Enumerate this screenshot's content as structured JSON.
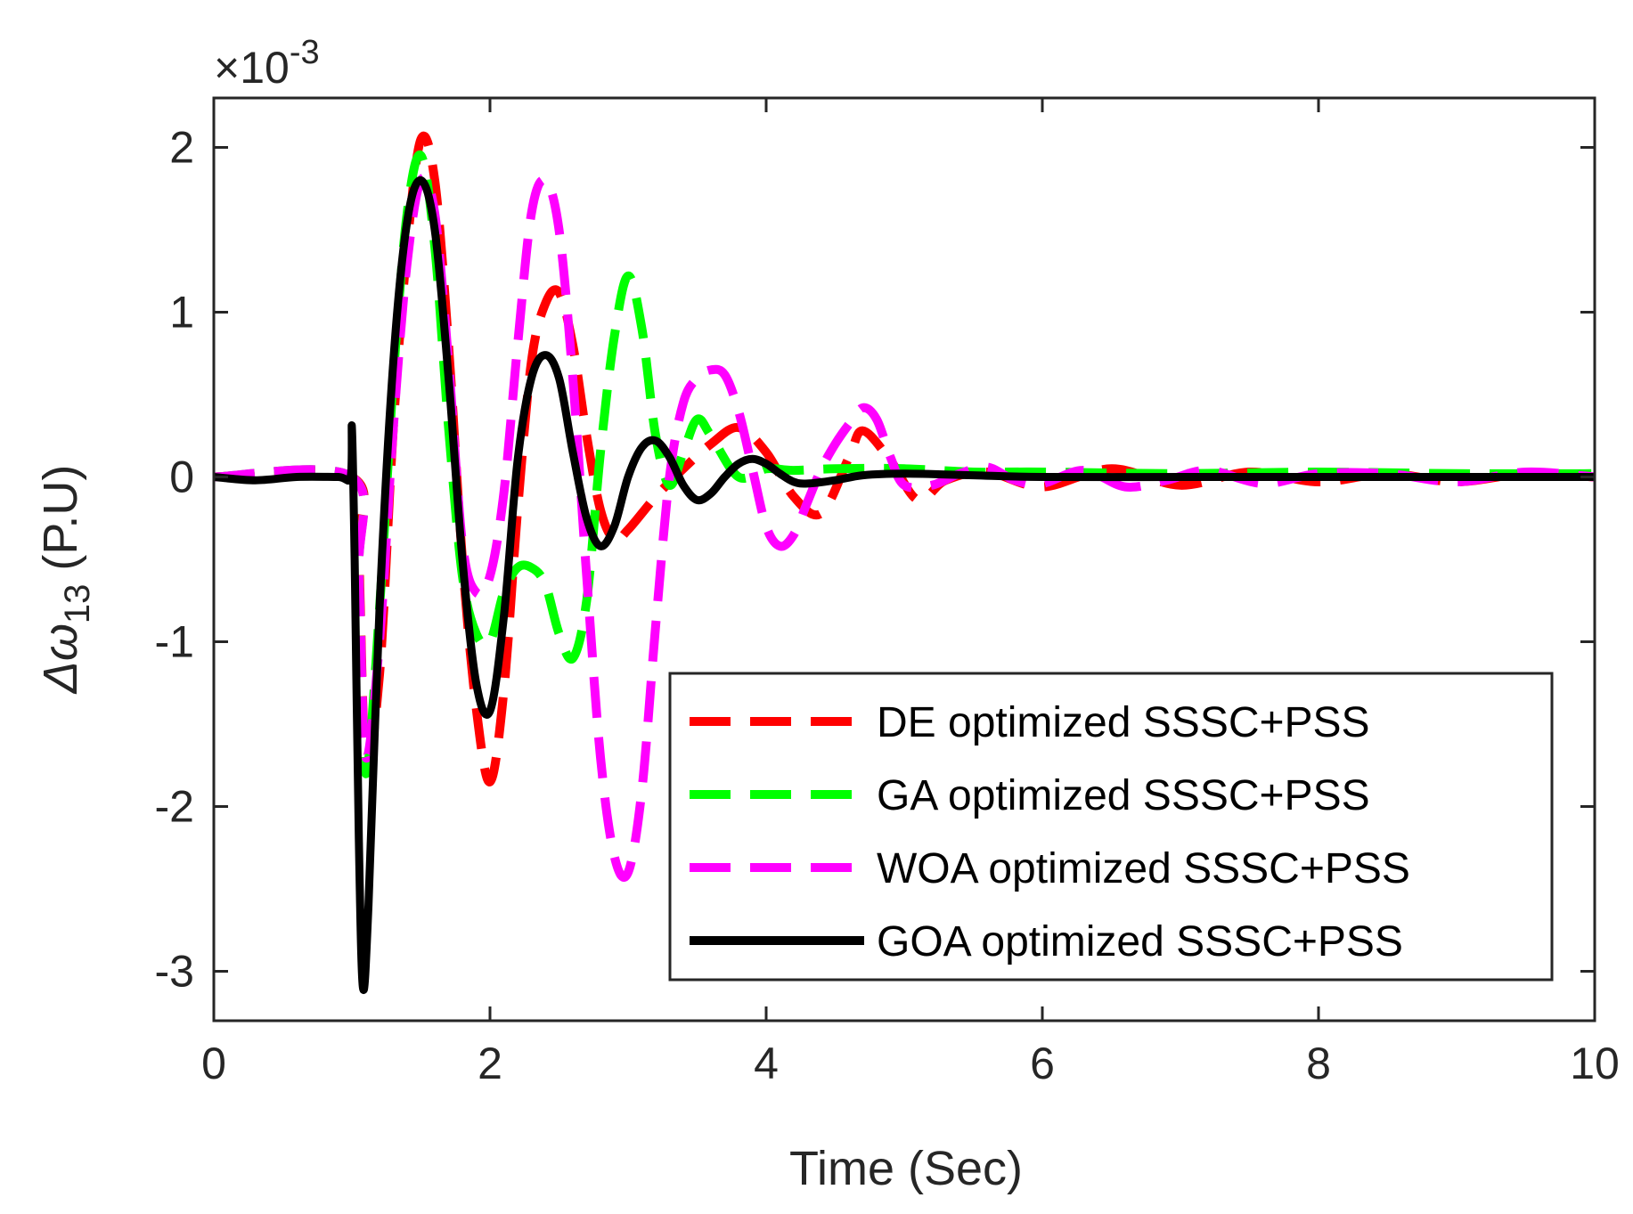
{
  "chart_data": {
    "type": "line",
    "xlabel": "Time (Sec)",
    "ylabel_main": "Δω",
    "ylabel_sub": "13",
    "ylabel_unit": " (P.U)",
    "y_exponent_prefix": "×10",
    "y_exponent_power": "-3",
    "xlim": [
      0,
      10
    ],
    "ylim": [
      -3.3,
      2.3
    ],
    "xticks": [
      0,
      2,
      4,
      6,
      8,
      10
    ],
    "xtick_labels": [
      "0",
      "2",
      "4",
      "6",
      "8",
      "10"
    ],
    "yticks": [
      -3,
      -2,
      -1,
      0,
      1,
      2
    ],
    "ytick_labels": [
      "-3",
      "-2",
      "-1",
      "0",
      "1",
      "2"
    ],
    "grid": false,
    "legend_position": "bottom-right",
    "series": [
      {
        "name": "DE optimized SSSC+PSS",
        "color": "#ff0000",
        "style": "dashed",
        "x": [
          0,
          1,
          1.05,
          1.1,
          1.2,
          1.3,
          1.4,
          1.5,
          1.6,
          1.7,
          1.8,
          1.9,
          2.0,
          2.1,
          2.2,
          2.3,
          2.4,
          2.5,
          2.6,
          2.7,
          2.8,
          2.9,
          3.0,
          3.2,
          3.4,
          3.6,
          3.8,
          4.0,
          4.2,
          4.4,
          4.6,
          4.7,
          4.9,
          5.1,
          5.3,
          5.6,
          6.0,
          6.5,
          7.0,
          7.5,
          8.0,
          8.5,
          9.0,
          9.5,
          10
        ],
        "y": [
          0,
          0,
          -0.5,
          -1.7,
          -1.2,
          0.3,
          1.4,
          2.05,
          1.8,
          0.8,
          -0.5,
          -1.4,
          -1.85,
          -1.3,
          -0.2,
          0.7,
          1.05,
          1.12,
          0.8,
          0.25,
          -0.2,
          -0.38,
          -0.32,
          -0.12,
          0.05,
          0.2,
          0.3,
          0.15,
          -0.12,
          -0.22,
          0.12,
          0.28,
          0.1,
          -0.14,
          -0.02,
          0.03,
          -0.06,
          0.05,
          -0.05,
          0.03,
          -0.03,
          0.02,
          -0.03,
          0.02,
          0
        ]
      },
      {
        "name": "GA optimized SSSC+PSS",
        "color": "#00ff00",
        "style": "dashed",
        "x": [
          0,
          1,
          1.05,
          1.1,
          1.2,
          1.3,
          1.4,
          1.5,
          1.6,
          1.7,
          1.8,
          1.9,
          2.0,
          2.1,
          2.2,
          2.3,
          2.4,
          2.5,
          2.6,
          2.7,
          2.8,
          2.9,
          3.0,
          3.1,
          3.2,
          3.3,
          3.4,
          3.5,
          3.6,
          3.8,
          4.0,
          4.2,
          4.5,
          5.0,
          5.5,
          6.0,
          7.0,
          8.0,
          9.0,
          10
        ],
        "y": [
          0,
          0,
          -0.6,
          -1.8,
          -0.8,
          0.6,
          1.6,
          1.95,
          1.4,
          0.3,
          -0.6,
          -0.95,
          -1.0,
          -0.7,
          -0.55,
          -0.55,
          -0.65,
          -0.95,
          -1.1,
          -0.75,
          0.15,
          0.85,
          1.22,
          0.9,
          0.25,
          -0.05,
          0.15,
          0.35,
          0.25,
          0.0,
          0.05,
          0.04,
          0.05,
          0.05,
          0.03,
          0.03,
          0.02,
          0.03,
          0.02,
          0.02
        ]
      },
      {
        "name": "WOA optimized SSSC+PSS",
        "color": "#ff00ff",
        "style": "dashed",
        "x": [
          0,
          1,
          1.05,
          1.1,
          1.2,
          1.3,
          1.4,
          1.5,
          1.6,
          1.7,
          1.8,
          1.9,
          2.0,
          2.1,
          2.2,
          2.3,
          2.4,
          2.5,
          2.6,
          2.7,
          2.8,
          2.9,
          3.0,
          3.1,
          3.2,
          3.3,
          3.4,
          3.5,
          3.6,
          3.7,
          3.8,
          3.9,
          4.0,
          4.1,
          4.2,
          4.3,
          4.4,
          4.5,
          4.6,
          4.7,
          4.8,
          4.9,
          5.0,
          5.2,
          5.4,
          5.6,
          5.8,
          6.0,
          6.3,
          6.6,
          6.9,
          7.2,
          7.6,
          8.0,
          8.5,
          9.0,
          9.5,
          10
        ],
        "y": [
          0,
          0,
          -0.6,
          -1.7,
          -1.0,
          0.3,
          1.3,
          1.8,
          1.6,
          0.7,
          -0.4,
          -0.7,
          -0.6,
          -0.1,
          0.8,
          1.6,
          1.8,
          1.5,
          0.6,
          -0.6,
          -1.7,
          -2.3,
          -2.4,
          -1.9,
          -0.9,
          0.0,
          0.45,
          0.6,
          0.65,
          0.62,
          0.4,
          0.05,
          -0.3,
          -0.42,
          -0.35,
          -0.15,
          0.05,
          0.2,
          0.32,
          0.42,
          0.35,
          0.12,
          -0.05,
          -0.05,
          0.02,
          0.06,
          -0.02,
          -0.04,
          0.04,
          -0.06,
          -0.02,
          0.04,
          -0.04,
          0.02,
          0.02,
          -0.03,
          0.03,
          0
        ]
      },
      {
        "name": "GOA optimized SSSC+PSS",
        "color": "#000000",
        "style": "solid",
        "x": [
          0,
          0.3,
          0.6,
          0.9,
          0.99,
          1.0,
          1.02,
          1.05,
          1.08,
          1.12,
          1.2,
          1.3,
          1.4,
          1.5,
          1.6,
          1.7,
          1.8,
          1.9,
          2.0,
          2.1,
          2.2,
          2.3,
          2.4,
          2.5,
          2.6,
          2.7,
          2.8,
          2.9,
          3.0,
          3.1,
          3.2,
          3.3,
          3.4,
          3.5,
          3.6,
          3.7,
          3.8,
          3.9,
          4.0,
          4.1,
          4.2,
          4.3,
          4.5,
          4.7,
          5.0,
          5.5,
          6.0,
          7.0,
          8.0,
          9.0,
          10
        ],
        "y": [
          0,
          -0.02,
          0.0,
          0.0,
          0.0,
          0.3,
          -0.5,
          -2.2,
          -3.1,
          -2.6,
          -0.8,
          0.7,
          1.55,
          1.8,
          1.5,
          0.6,
          -0.5,
          -1.25,
          -1.42,
          -0.85,
          0.1,
          0.6,
          0.74,
          0.6,
          0.15,
          -0.25,
          -0.42,
          -0.3,
          0.0,
          0.18,
          0.22,
          0.12,
          -0.05,
          -0.14,
          -0.1,
          0.0,
          0.08,
          0.11,
          0.08,
          0.02,
          -0.03,
          -0.04,
          -0.02,
          0.01,
          0.02,
          0.01,
          0.0,
          0.0,
          0.0,
          0.0,
          0.0
        ]
      }
    ]
  }
}
